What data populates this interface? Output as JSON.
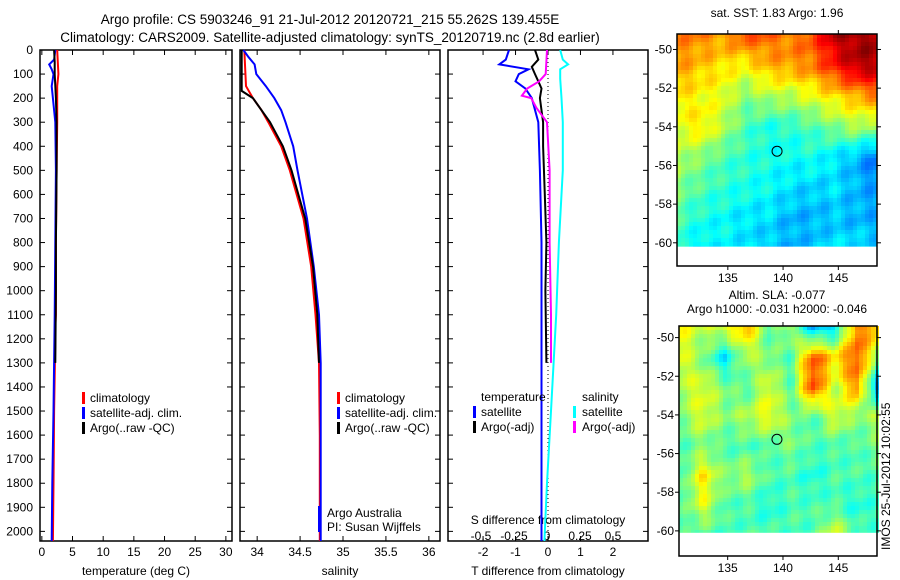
{
  "header": {
    "title_line1": "Argo profile: CS 5903246_91 21-Jul-2012 20120721_215 55.262S 139.455E",
    "title_line2": "Climatology: CARS2009. Satellite-adjusted climatology: synTS_20120719.nc (2.8d earlier)"
  },
  "footer": {
    "stamp": "IMOS 25-Jul-2012 10:02:55"
  },
  "colors": {
    "climatology": "#ff0000",
    "satellite": "#0000ff",
    "argo": "#000000",
    "sal_satellite": "#00ffff",
    "sal_argo": "#ff00ff"
  },
  "chart_data": [
    {
      "type": "line",
      "name": "temperature-profile",
      "xlabel": "temperature (deg C)",
      "ylabel": "depth",
      "xlim": [
        -0.3,
        31
      ],
      "ylim": [
        2040,
        0
      ],
      "xticks": [
        "0",
        "5",
        "10",
        "15",
        "20",
        "25",
        "30"
      ],
      "xtick_values": [
        0,
        5,
        10,
        15,
        20,
        25,
        30
      ],
      "yticks": [
        "0",
        "100",
        "200",
        "300",
        "400",
        "500",
        "600",
        "700",
        "800",
        "900",
        "1000",
        "1100",
        "1200",
        "1300",
        "1400",
        "1500",
        "1600",
        "1700",
        "1800",
        "1900",
        "2000"
      ],
      "legend": [
        "climatology",
        "satellite-adj. clim.",
        "Argo(..raw -QC)"
      ],
      "series": [
        {
          "name": "climatology",
          "color": "#ff0000",
          "depth": [
            0,
            50,
            100,
            150,
            200,
            300,
            500,
            800,
            1100,
            1150,
            1200,
            1500,
            1800,
            2040
          ],
          "values": [
            2.5,
            2.6,
            2.7,
            2.5,
            2.5,
            2.5,
            2.4,
            2.3,
            2.3,
            2.2,
            2.2,
            2.0,
            1.9,
            1.8
          ]
        },
        {
          "name": "satellite-adj. clim.",
          "color": "#0000ff",
          "depth": [
            0,
            40,
            60,
            80,
            100,
            150,
            200,
            300,
            500,
            800,
            1100,
            1500,
            1800,
            2040
          ],
          "values": [
            2.2,
            2.0,
            1.2,
            1.6,
            1.9,
            1.6,
            1.8,
            2.2,
            2.3,
            2.2,
            2.1,
            1.9,
            1.7,
            1.6
          ]
        },
        {
          "name": "Argo(..raw -QC)",
          "color": "#000000",
          "depth": [
            0,
            50,
            100,
            150,
            200,
            300,
            500,
            800,
            1000,
            1300
          ],
          "values": [
            2.0,
            2.1,
            2.1,
            2.2,
            2.3,
            2.4,
            2.4,
            2.3,
            2.3,
            2.2
          ]
        }
      ]
    },
    {
      "type": "line",
      "name": "salinity-profile",
      "xlabel": "salinity",
      "xlim": [
        33.8,
        36.13
      ],
      "ylim": [
        2040,
        0
      ],
      "xticks": [
        "34",
        "34.5",
        "35",
        "35.5",
        "36"
      ],
      "xtick_values": [
        34,
        34.5,
        35,
        35.5,
        36
      ],
      "legend": [
        "climatology",
        "satellite-adj. clim.",
        "Argo(..raw -QC)"
      ],
      "annotation": [
        "Argo Australia",
        "PI: Susan Wijffels"
      ],
      "series": [
        {
          "name": "climatology",
          "color": "#ff0000",
          "depth": [
            0,
            150,
            200,
            250,
            300,
            400,
            500,
            700,
            900,
            1100,
            1300,
            1600,
            2040
          ],
          "values": [
            33.85,
            33.87,
            33.95,
            34.05,
            34.13,
            34.28,
            34.38,
            34.54,
            34.63,
            34.68,
            34.72,
            34.73,
            34.73
          ]
        },
        {
          "name": "satellite-adj. clim.",
          "color": "#0000ff",
          "depth": [
            0,
            30,
            60,
            100,
            150,
            200,
            250,
            300,
            400,
            500,
            700,
            900,
            1100,
            1300,
            1600,
            2040
          ],
          "values": [
            33.84,
            33.9,
            33.97,
            33.99,
            34.1,
            34.2,
            34.28,
            34.33,
            34.42,
            34.47,
            34.58,
            34.66,
            34.72,
            34.74,
            34.74,
            34.74
          ]
        },
        {
          "name": "Argo(..raw -QC)",
          "color": "#000000",
          "depth": [
            0,
            170,
            200,
            250,
            300,
            400,
            500,
            700,
            900,
            1100,
            1300
          ],
          "values": [
            33.82,
            33.82,
            33.95,
            34.05,
            34.15,
            34.3,
            34.4,
            34.56,
            34.65,
            34.7,
            34.72
          ]
        }
      ]
    },
    {
      "type": "line",
      "name": "difference-profile",
      "xlabel": "T difference from climatology",
      "xlabel2": "S difference from climatology",
      "xlim": [
        -3.08,
        3.08
      ],
      "ylim": [
        2040,
        0
      ],
      "xticks": [
        "-2",
        "-1",
        "0",
        "1",
        "2"
      ],
      "xtick_values": [
        -2,
        -1,
        0,
        1,
        2
      ],
      "s_xticks": [
        "-0.5",
        "-0.25",
        "0",
        "0.25",
        "0.5"
      ],
      "s_xtick_values": [
        -0.5,
        -0.25,
        0,
        0.25,
        0.5
      ],
      "legend_temperature": {
        "title": "temperature",
        "items": [
          "satellite",
          "Argo(-adj)"
        ]
      },
      "legend_salinity": {
        "title": "salinity",
        "items": [
          "satellite",
          "Argo(-adj)"
        ]
      },
      "series": [
        {
          "name": "T satellite",
          "axis": "T",
          "color": "#0000ff",
          "depth": [
            0,
            40,
            60,
            80,
            100,
            130,
            160,
            200,
            300,
            500,
            800,
            1200,
            1600,
            2040
          ],
          "values": [
            -1.2,
            -1.3,
            -1.5,
            -0.6,
            -0.9,
            -1.0,
            -0.7,
            -0.5,
            -0.3,
            -0.25,
            -0.2,
            -0.2,
            -0.2,
            -0.2
          ]
        },
        {
          "name": "T Argo(-adj)",
          "axis": "T",
          "color": "#000000",
          "depth": [
            0,
            40,
            70,
            100,
            130,
            160,
            200,
            250,
            300,
            400,
            600,
            800,
            1000,
            1300
          ],
          "values": [
            -0.4,
            -0.3,
            -0.5,
            -0.4,
            -0.3,
            -0.2,
            -0.25,
            -0.2,
            -0.15,
            -0.15,
            -0.1,
            -0.05,
            -0.08,
            -0.05
          ]
        },
        {
          "name": "S satellite",
          "axis": "S",
          "color": "#00ffff",
          "depth": [
            0,
            40,
            60,
            80,
            120,
            200,
            300,
            500,
            800,
            1100,
            1500,
            1800,
            2040
          ],
          "values": [
            0.1,
            0.12,
            0.16,
            0.1,
            0.1,
            0.11,
            0.12,
            0.12,
            0.09,
            0.07,
            0.03,
            0.0,
            -0.02
          ]
        },
        {
          "name": "S Argo(-adj)",
          "axis": "S",
          "color": "#ff00ff",
          "depth": [
            0,
            100,
            130,
            160,
            190,
            200,
            240,
            300,
            500,
            800,
            1100,
            1300
          ],
          "values": [
            0.0,
            -0.01,
            -0.06,
            -0.15,
            -0.19,
            -0.12,
            -0.08,
            0.0,
            0.02,
            0.02,
            0.03,
            0.03
          ]
        }
      ]
    },
    {
      "type": "heatmap",
      "name": "sst-map",
      "title": "sat. SST: 1.83 Argo: 1.96",
      "lon_range": [
        130.4,
        148.5
      ],
      "lat_range": [
        -60.2,
        -49.2
      ],
      "xticks": [
        "135",
        "140",
        "145"
      ],
      "xtick_values": [
        135,
        140,
        145
      ],
      "yticks": [
        "-50",
        "-52",
        "-54",
        "-56",
        "-58",
        "-60"
      ],
      "ytick_values": [
        -50,
        -52,
        -54,
        -56,
        -58,
        -60
      ],
      "marker": {
        "lon": 139.455,
        "lat": -55.262
      },
      "grid_normalized": [
        [
          0.75,
          0.75,
          0.72,
          0.8,
          0.78,
          0.75,
          0.8,
          0.95,
          0.97,
          0.97
        ],
        [
          0.72,
          0.68,
          0.65,
          0.62,
          0.7,
          0.72,
          0.75,
          0.85,
          0.95,
          0.95
        ],
        [
          0.65,
          0.62,
          0.6,
          0.5,
          0.55,
          0.55,
          0.6,
          0.65,
          0.7,
          0.75
        ],
        [
          0.6,
          0.65,
          0.55,
          0.45,
          0.4,
          0.42,
          0.45,
          0.5,
          0.55,
          0.5
        ],
        [
          0.55,
          0.5,
          0.45,
          0.42,
          0.4,
          0.38,
          0.4,
          0.35,
          0.3,
          0.22
        ],
        [
          0.5,
          0.45,
          0.42,
          0.4,
          0.38,
          0.35,
          0.33,
          0.35,
          0.3,
          0.28
        ],
        [
          0.45,
          0.4,
          0.38,
          0.35,
          0.35,
          0.3,
          0.3,
          0.32,
          0.3,
          0.3
        ],
        [
          0.4,
          0.35,
          0.38,
          0.35,
          0.32,
          0.3,
          0.32,
          0.35,
          0.35,
          0.33
        ]
      ]
    },
    {
      "type": "heatmap",
      "name": "sla-map",
      "title": "Altim. SLA: -0.077",
      "subtitle": "Argo h1000: -0.031 h2000: -0.046",
      "lon_range": [
        130.6,
        148.5
      ],
      "lat_range": [
        -60.1,
        -49.4
      ],
      "xticks": [
        "135",
        "140",
        "145"
      ],
      "xtick_values": [
        135,
        140,
        145
      ],
      "yticks": [
        "-50",
        "-52",
        "-54",
        "-56",
        "-58",
        "-60"
      ],
      "ytick_values": [
        -50,
        -52,
        -54,
        -56,
        -58,
        -60
      ],
      "marker": {
        "lon": 139.455,
        "lat": -55.262
      },
      "grid_normalized": [
        [
          0.62,
          0.55,
          0.6,
          0.7,
          0.45,
          0.55,
          0.3,
          0.35,
          0.75,
          0.7
        ],
        [
          0.6,
          0.5,
          0.35,
          0.55,
          0.5,
          0.45,
          0.8,
          0.65,
          0.8,
          0.5
        ],
        [
          0.55,
          0.6,
          0.5,
          0.45,
          0.6,
          0.45,
          0.82,
          0.55,
          0.75,
          0.22
        ],
        [
          0.5,
          0.6,
          0.5,
          0.55,
          0.62,
          0.5,
          0.45,
          0.6,
          0.5,
          0.55
        ],
        [
          0.45,
          0.5,
          0.45,
          0.45,
          0.45,
          0.5,
          0.45,
          0.45,
          0.45,
          0.5
        ],
        [
          0.45,
          0.65,
          0.5,
          0.55,
          0.45,
          0.45,
          0.4,
          0.45,
          0.45,
          0.45
        ],
        [
          0.45,
          0.6,
          0.45,
          0.45,
          0.4,
          0.45,
          0.45,
          0.45,
          0.4,
          0.45
        ],
        [
          0.45,
          0.45,
          0.45,
          0.45,
          0.45,
          0.45,
          0.45,
          0.6,
          0.45,
          0.45
        ]
      ]
    }
  ]
}
